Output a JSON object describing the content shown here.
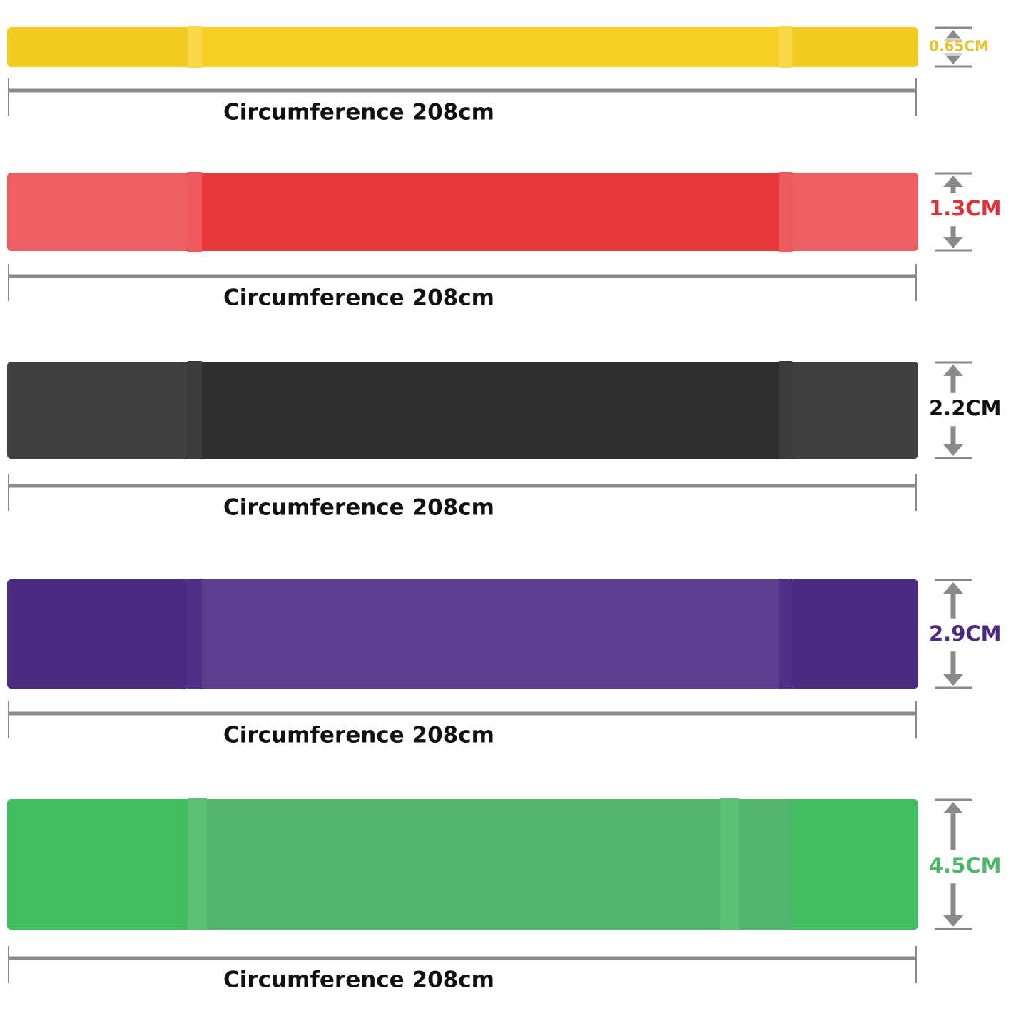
{
  "bands": [
    {
      "width": "0.65CM",
      "circumference": "Circumference 208cm"
    },
    {
      "width": "1.3CM",
      "circumference": "Circumference 208cm"
    },
    {
      "width": "2.2CM",
      "circumference": "Circumference 208cm"
    },
    {
      "width": "2.9CM",
      "circumference": "Circumference 208cm"
    },
    {
      "width": "4.5CM",
      "circumference": "Circumference 208cm"
    }
  ]
}
